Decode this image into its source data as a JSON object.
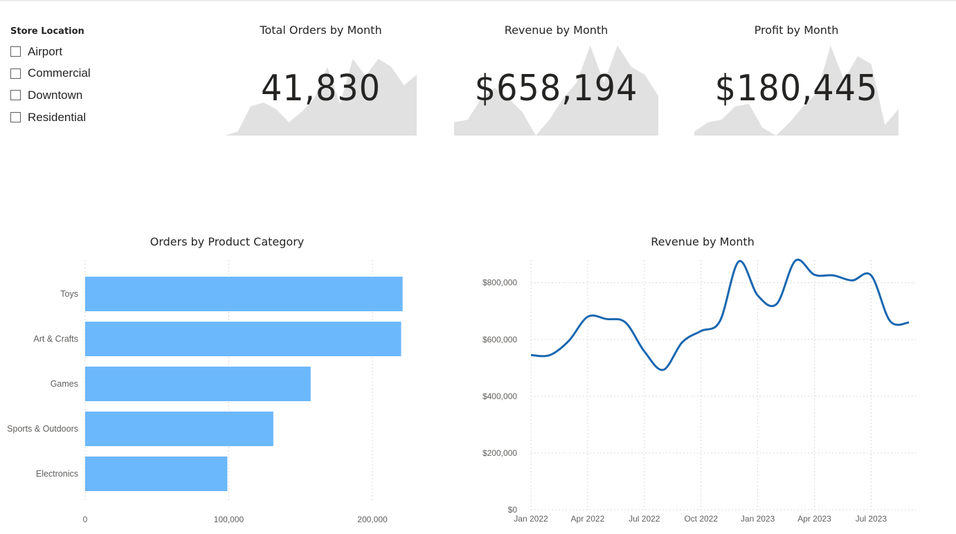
{
  "slicer": {
    "title": "Store Location",
    "items": [
      {
        "label": "Airport",
        "checked": false
      },
      {
        "label": "Commercial",
        "checked": false
      },
      {
        "label": "Downtown",
        "checked": false
      },
      {
        "label": "Residential",
        "checked": false
      }
    ]
  },
  "colors": {
    "sparkline_fill": "#e1e1e1",
    "bar": "#6cb8fc",
    "line": "#1a67b0",
    "text": "#252423",
    "axis_text": "#605e5c",
    "grid": "#d9d9d9"
  },
  "kpi_cards": [
    {
      "title": "Total Orders by Month",
      "value": "41,830",
      "sparkline": [
        0,
        3,
        22,
        25,
        20,
        10,
        18,
        28,
        52,
        24,
        58,
        45,
        58,
        52,
        38,
        46
      ]
    },
    {
      "title": "Revenue by Month",
      "value": "$658,194",
      "sparkline": [
        10,
        12,
        28,
        36,
        28,
        18,
        0,
        12,
        28,
        40,
        68,
        40,
        68,
        52,
        46,
        30
      ]
    },
    {
      "title": "Profit by Month",
      "value": "$180,445",
      "sparkline": [
        3,
        10,
        12,
        22,
        24,
        6,
        0,
        10,
        22,
        32,
        68,
        42,
        60,
        54,
        8,
        20
      ]
    }
  ],
  "chart_data": [
    {
      "type": "bar",
      "orientation": "horizontal",
      "title": "Orders by Product Category",
      "categories": [
        "Toys",
        "Art & Crafts",
        "Games",
        "Sports & Outdoors",
        "Electronics"
      ],
      "values": [
        221000,
        220000,
        157000,
        131000,
        99000
      ],
      "xlim": [
        0,
        240000
      ],
      "xticks": [
        0,
        100000,
        200000
      ],
      "xtick_labels": [
        "0",
        "100,000",
        "200,000"
      ],
      "grid": true
    },
    {
      "type": "line",
      "title": "Revenue by Month",
      "x": [
        "2022-01",
        "2022-02",
        "2022-03",
        "2022-04",
        "2022-05",
        "2022-06",
        "2022-07",
        "2022-08",
        "2022-09",
        "2022-10",
        "2022-11",
        "2022-12",
        "2023-01",
        "2023-02",
        "2023-03",
        "2023-04",
        "2023-05",
        "2023-06",
        "2023-07",
        "2023-08",
        "2023-09"
      ],
      "series": [
        {
          "values": [
            545000,
            545000,
            595000,
            680000,
            672000,
            660000,
            558000,
            493000,
            590000,
            630000,
            665000,
            875000,
            755000,
            725000,
            878000,
            828000,
            826000,
            808000,
            826000,
            665000,
            660000
          ]
        }
      ],
      "ylim": [
        0,
        870000
      ],
      "yticks": [
        0,
        200000,
        400000,
        600000,
        800000
      ],
      "ytick_labels": [
        "$0",
        "$200,000",
        "$400,000",
        "$600,000",
        "$800,000"
      ],
      "xtick_labels": [
        "Jan 2022",
        "Apr 2022",
        "Jul 2022",
        "Oct 2022",
        "Jan 2023",
        "Apr 2023",
        "Jul 2023"
      ],
      "grid": true
    }
  ]
}
